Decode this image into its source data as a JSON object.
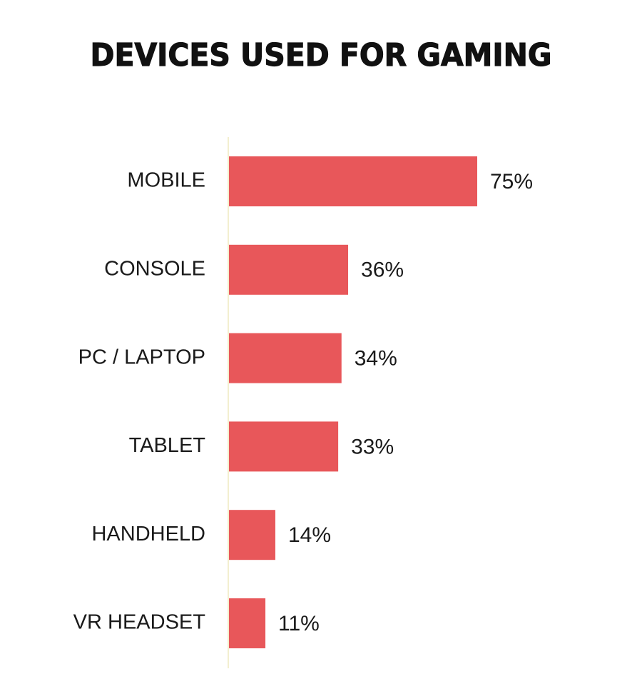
{
  "title": "DEVICES USED FOR GAMING",
  "colors": {
    "bar": "#e8575a",
    "axis": "#f3efcf",
    "text": "#1a1a1a"
  },
  "chart_data": {
    "type": "bar",
    "orientation": "horizontal",
    "title": "DEVICES USED FOR GAMING",
    "categories": [
      "MOBILE",
      "CONSOLE",
      "PC / LAPTOP",
      "TABLET",
      "HANDHELD",
      "VR HEADSET"
    ],
    "values": [
      75,
      36,
      34,
      33,
      14,
      11
    ],
    "value_labels": [
      "75%",
      "36%",
      "34%",
      "33%",
      "14%",
      "11%"
    ],
    "unit": "%",
    "xlim": [
      0,
      75
    ],
    "grid": false,
    "legend": "none"
  }
}
